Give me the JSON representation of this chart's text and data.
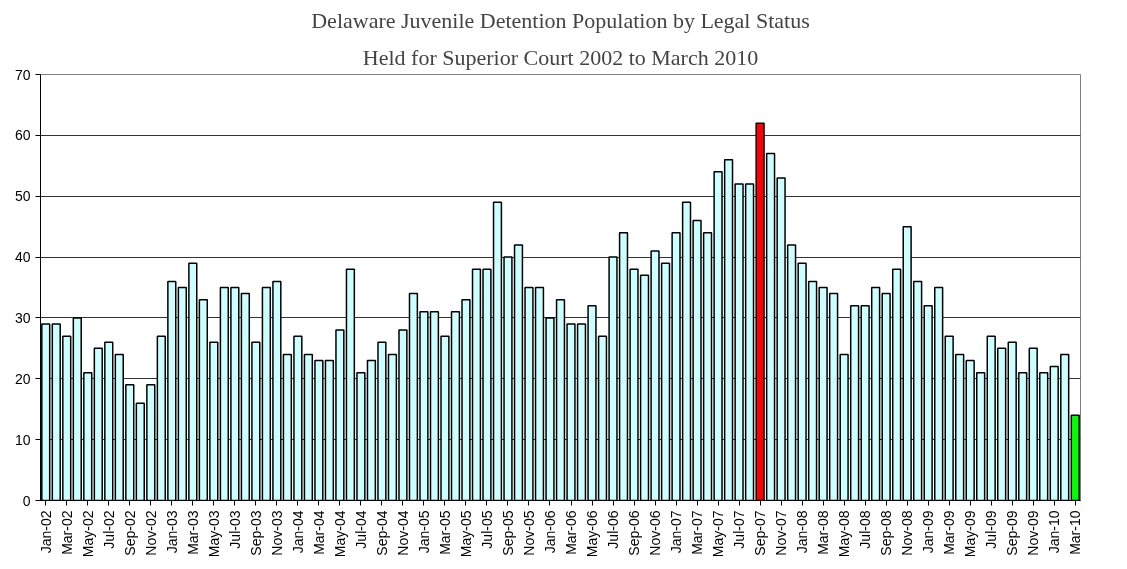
{
  "chart_data": {
    "type": "bar",
    "title": "Delaware Juvenile Detention Population by Legal Status",
    "subtitle": "Held for Superior Court 2002 to March 2010",
    "categories": [
      "Jan-02",
      null,
      "Mar-02",
      null,
      "May-02",
      null,
      "Jul-02",
      null,
      "Sep-02",
      null,
      "Nov-02",
      null,
      "Jan-03",
      null,
      "Mar-03",
      null,
      "May-03",
      null,
      "Jul-03",
      null,
      "Sep-03",
      null,
      "Nov-03",
      null,
      "Jan-04",
      null,
      "Mar-04",
      null,
      "May-04",
      null,
      "Jul-04",
      null,
      "Sep-04",
      null,
      "Nov-04",
      null,
      "Jan-05",
      null,
      "Mar-05",
      null,
      "May-05",
      null,
      "Jul-05",
      null,
      "Sep-05",
      null,
      "Nov-05",
      null,
      "Jan-06",
      null,
      "Mar-06",
      null,
      "May-06",
      null,
      "Jul-06",
      null,
      "Sep-06",
      null,
      "Nov-06",
      null,
      "Jan-07",
      null,
      "Mar-07",
      null,
      "May-07",
      null,
      "Jul-07",
      null,
      "Sep-07",
      null,
      "Nov-07",
      null,
      "Jan-08",
      null,
      "Mar-08",
      null,
      "May-08",
      null,
      "Jul-08",
      null,
      "Sep-08",
      null,
      "Nov-08",
      null,
      "Jan-09",
      null,
      "Mar-09",
      null,
      "May-09",
      null,
      "Jul-09",
      null,
      "Sep-09",
      null,
      "Nov-09",
      null,
      "Jan-10",
      null,
      "Mar-10"
    ],
    "values": [
      29,
      29,
      27,
      30,
      21,
      25,
      26,
      24,
      19,
      16,
      19,
      27,
      36,
      35,
      39,
      33,
      26,
      35,
      35,
      34,
      26,
      35,
      36,
      24,
      27,
      24,
      23,
      23,
      28,
      38,
      21,
      23,
      26,
      24,
      28,
      34,
      31,
      31,
      27,
      31,
      33,
      38,
      38,
      49,
      40,
      42,
      35,
      35,
      30,
      33,
      29,
      29,
      32,
      27,
      40,
      44,
      38,
      37,
      41,
      39,
      44,
      49,
      46,
      44,
      54,
      56,
      52,
      52,
      62,
      57,
      53,
      42,
      39,
      36,
      35,
      34,
      24,
      32,
      32,
      35,
      34,
      38,
      45,
      36,
      32,
      35,
      27,
      24,
      23,
      21,
      27,
      25,
      26,
      21,
      25,
      21,
      22,
      24,
      14
    ],
    "colors": [
      "#ccffff",
      "#ccffff",
      "#ccffff",
      "#ccffff",
      "#ccffff",
      "#ccffff",
      "#ccffff",
      "#ccffff",
      "#ccffff",
      "#ccffff",
      "#ccffff",
      "#ccffff",
      "#ccffff",
      "#ccffff",
      "#ccffff",
      "#ccffff",
      "#ccffff",
      "#ccffff",
      "#ccffff",
      "#ccffff",
      "#ccffff",
      "#ccffff",
      "#ccffff",
      "#ccffff",
      "#ccffff",
      "#ccffff",
      "#ccffff",
      "#ccffff",
      "#ccffff",
      "#ccffff",
      "#ccffff",
      "#ccffff",
      "#ccffff",
      "#ccffff",
      "#ccffff",
      "#ccffff",
      "#ccffff",
      "#ccffff",
      "#ccffff",
      "#ccffff",
      "#ccffff",
      "#ccffff",
      "#ccffff",
      "#ccffff",
      "#ccffff",
      "#ccffff",
      "#ccffff",
      "#ccffff",
      "#ccffff",
      "#ccffff",
      "#ccffff",
      "#ccffff",
      "#ccffff",
      "#ccffff",
      "#ccffff",
      "#ccffff",
      "#ccffff",
      "#ccffff",
      "#ccffff",
      "#ccffff",
      "#ccffff",
      "#ccffff",
      "#ccffff",
      "#ccffff",
      "#ccffff",
      "#ccffff",
      "#ccffff",
      "#ccffff",
      "#ff0000",
      "#ccffff",
      "#ccffff",
      "#ccffff",
      "#ccffff",
      "#ccffff",
      "#ccffff",
      "#ccffff",
      "#ccffff",
      "#ccffff",
      "#ccffff",
      "#ccffff",
      "#ccffff",
      "#ccffff",
      "#ccffff",
      "#ccffff",
      "#ccffff",
      "#ccffff",
      "#ccffff",
      "#ccffff",
      "#ccffff",
      "#ccffff",
      "#ccffff",
      "#ccffff",
      "#ccffff",
      "#ccffff",
      "#ccffff",
      "#ccffff",
      "#ccffff",
      "#ccffff",
      "#00ff00"
    ],
    "ylim": [
      0,
      70
    ],
    "yticks": [
      0,
      10,
      20,
      30,
      40,
      50,
      60,
      70
    ],
    "grid": "y"
  }
}
